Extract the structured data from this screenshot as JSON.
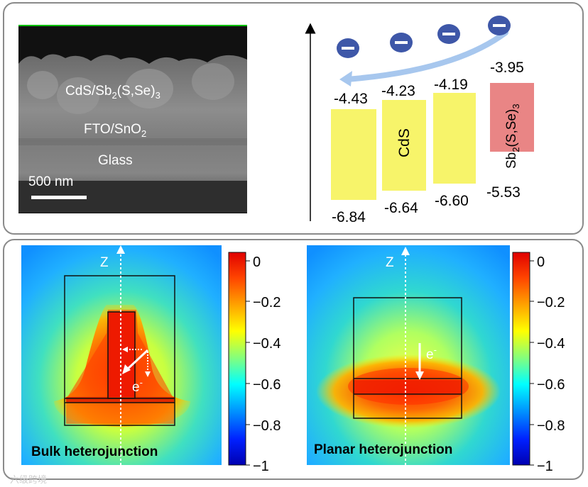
{
  "sem": {
    "layer_top": "CdS/Sb",
    "layer_top_sub": "2",
    "layer_top_mid": "(S,Se)",
    "layer_top_sub2": "3",
    "layer_mid": "FTO/SnO",
    "layer_mid_sub": "2",
    "layer_bottom": "Glass",
    "scale_bar": "500 nm"
  },
  "band": {
    "cb": [
      "-4.43",
      "-4.23",
      "-4.19",
      "-3.95"
    ],
    "vb": [
      "-6.84",
      "-6.64",
      "-6.60",
      "-5.53"
    ],
    "cds_label": "CdS",
    "sbsse_label_main": "Sb",
    "sbsse_label_sub": "2",
    "sbsse_label_mid": "(S,Se)",
    "sbsse_label_sub2": "3",
    "electron_symbol": "−",
    "colors": {
      "yellow": "#f7f46a",
      "red": "#e98585",
      "arrow": "#a7c7ee",
      "electron": "#3e57a8"
    }
  },
  "sim": {
    "axis_label": "Z",
    "electron_label": "e",
    "electron_sup": "-",
    "bulk_title": "Bulk heterojunction",
    "planar_title": "Planar heterojunction",
    "colorbar_ticks": [
      "0",
      "−0.2",
      "−0.4",
      "−0.6",
      "−0.8",
      "−1"
    ]
  },
  "watermark": "六级跨境"
}
